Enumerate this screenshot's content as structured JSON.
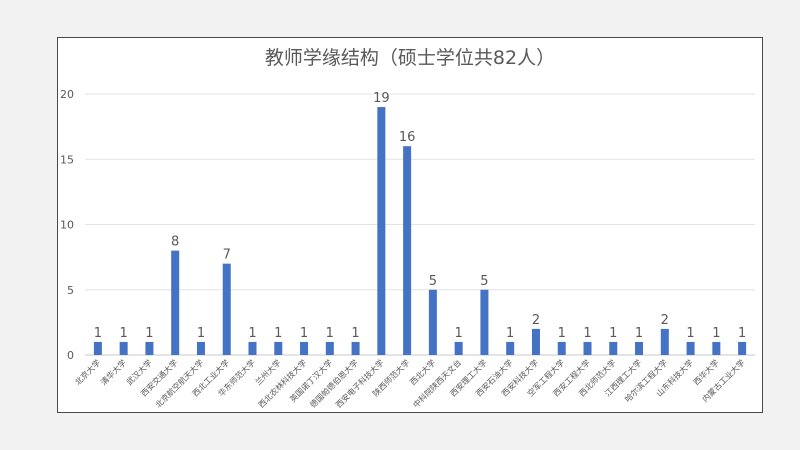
{
  "chart_data": {
    "type": "bar",
    "title": "教师学缘结构（硕士学位共82人）",
    "xlabel": "",
    "ylabel": "",
    "ylim": [
      0,
      20
    ],
    "yticks": [
      0,
      5,
      10,
      15,
      20
    ],
    "grid": true,
    "legend": "none",
    "bar_color": "#4472c4",
    "categories": [
      "北京大学",
      "清华大学",
      "武汉大学",
      "西安交通大学",
      "北京航空航天大学",
      "西北工业大学",
      "华东师范大学",
      "兰州大学",
      "西北农林科技大学",
      "英国诺丁汉大学",
      "德国帕德伯恩大学",
      "西安电子科技大学",
      "陕西师范大学",
      "西北大学",
      "中科院陕西天文台",
      "西安理工大学",
      "西安石油大学",
      "西安科技大学",
      "空军工程大学",
      "西安工程大学",
      "西北师范大学",
      "江西理工大学",
      "哈尔滨工程大学",
      "山东科技大学",
      "西华大学",
      "内蒙古工业大学"
    ],
    "values": [
      1,
      1,
      1,
      8,
      1,
      7,
      1,
      1,
      1,
      1,
      1,
      19,
      16,
      5,
      1,
      5,
      1,
      2,
      1,
      1,
      1,
      1,
      2,
      1,
      1,
      1
    ]
  }
}
